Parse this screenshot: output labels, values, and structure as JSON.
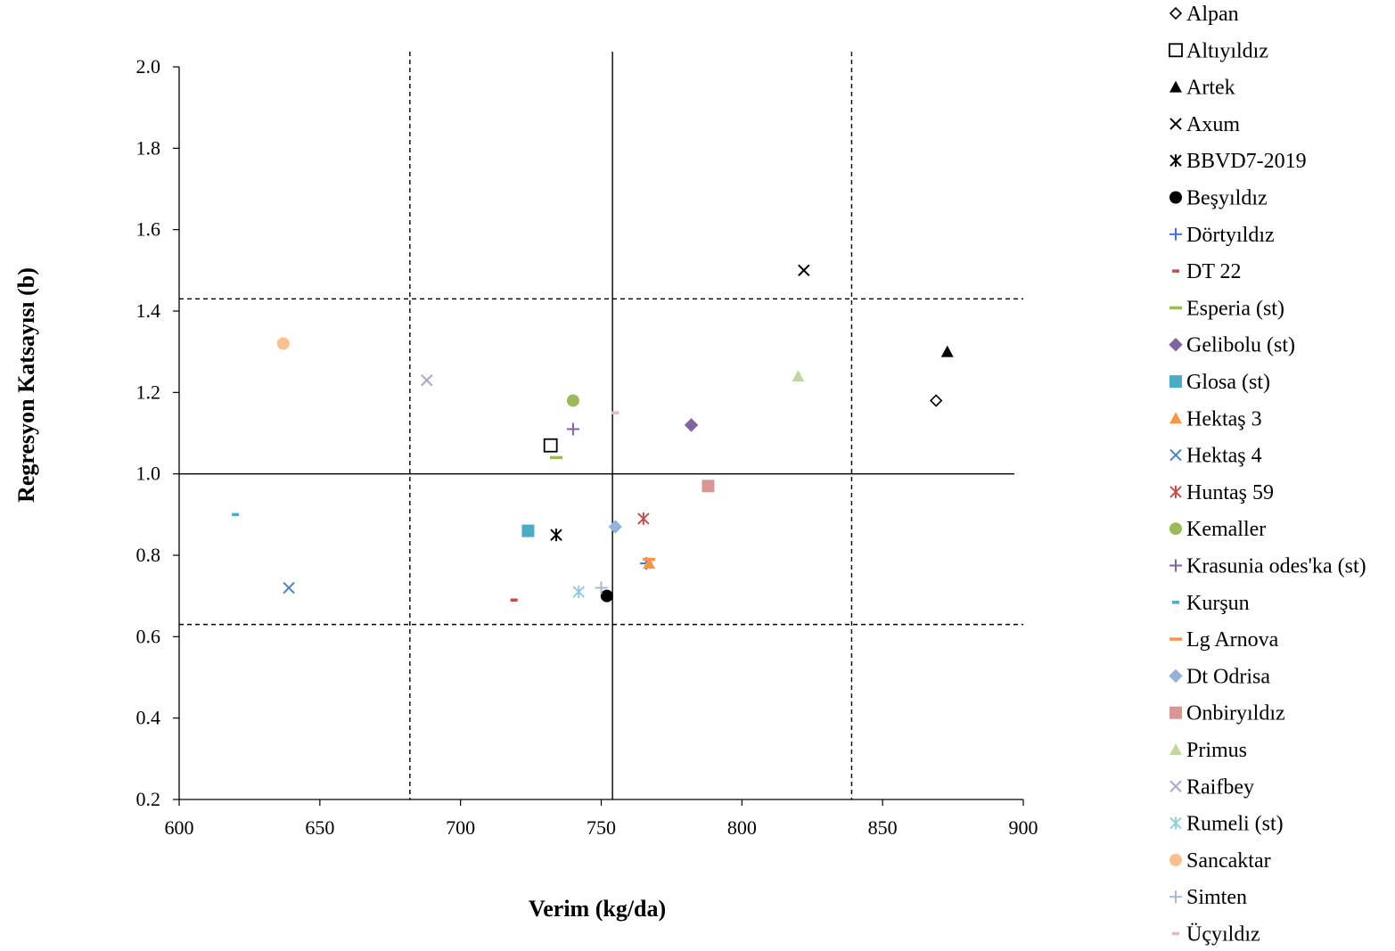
{
  "chart_data": {
    "type": "scatter",
    "title": "",
    "xlabel": "Verim (kg/da)",
    "ylabel": "Regresyon Katsayısı (b)",
    "xlim": [
      600,
      900
    ],
    "ylim": [
      0.2,
      2.0
    ],
    "xticks": [
      600,
      650,
      700,
      750,
      800,
      850,
      900
    ],
    "yticks": [
      0.2,
      0.4,
      0.6,
      0.8,
      1.0,
      1.2,
      1.4,
      1.6,
      1.8,
      2.0
    ],
    "xtick_labels": [
      "600",
      "650",
      "700",
      "750",
      "800",
      "850",
      "900"
    ],
    "ytick_labels": [
      "0.2",
      "0.4",
      "0.6",
      "0.8",
      "1.0",
      "1.2",
      "1.4",
      "1.6",
      "1.8",
      "2.0"
    ],
    "grid": false,
    "legend_position": "right",
    "reference_lines": [
      {
        "orientation": "vertical",
        "x": 754,
        "style": "solid"
      },
      {
        "orientation": "vertical",
        "x": 682,
        "style": "dashed"
      },
      {
        "orientation": "vertical",
        "x": 839,
        "style": "dashed"
      },
      {
        "orientation": "horizontal",
        "y": 1.0,
        "style": "solid"
      },
      {
        "orientation": "horizontal",
        "y": 1.43,
        "style": "dashed"
      },
      {
        "orientation": "horizontal",
        "y": 0.63,
        "style": "dashed"
      }
    ],
    "series": [
      {
        "name": "Alpan",
        "x": 869,
        "y": 1.18,
        "marker": "diamond-open",
        "color": "#000000"
      },
      {
        "name": "Altıyıldız",
        "x": 732,
        "y": 1.07,
        "marker": "square-open",
        "color": "#000000"
      },
      {
        "name": "Artek",
        "x": 873,
        "y": 1.3,
        "marker": "triangle",
        "color": "#000000"
      },
      {
        "name": "Axum",
        "x": 822,
        "y": 1.5,
        "marker": "x",
        "color": "#000000"
      },
      {
        "name": "BBVD7-2019",
        "x": 734,
        "y": 0.85,
        "marker": "star",
        "color": "#000000"
      },
      {
        "name": "Beşyıldız",
        "x": 752,
        "y": 0.7,
        "marker": "circle",
        "color": "#000000"
      },
      {
        "name": "Dörtyıldız",
        "x": 766,
        "y": 0.78,
        "marker": "plus",
        "color": "#4472C4"
      },
      {
        "name": "DT 22",
        "x": 719,
        "y": 0.69,
        "marker": "dash",
        "color": "#C0504D"
      },
      {
        "name": "Esperia (st)",
        "x": 734,
        "y": 1.04,
        "marker": "dash-long",
        "color": "#9BBB59"
      },
      {
        "name": "Gelibolu (st)",
        "x": 782,
        "y": 1.12,
        "marker": "diamond",
        "color": "#8064A2"
      },
      {
        "name": "Glosa (st)",
        "x": 724,
        "y": 0.86,
        "marker": "square",
        "color": "#4BACC6"
      },
      {
        "name": "Hektaş 3",
        "x": 767,
        "y": 0.78,
        "marker": "triangle",
        "color": "#F79646"
      },
      {
        "name": "Hektaş 4",
        "x": 639,
        "y": 0.72,
        "marker": "x",
        "color": "#4F81BD"
      },
      {
        "name": "Huntaş 59",
        "x": 765,
        "y": 0.89,
        "marker": "star",
        "color": "#C0504D"
      },
      {
        "name": "Kemaller",
        "x": 740,
        "y": 1.18,
        "marker": "circle",
        "color": "#9BBB59"
      },
      {
        "name": "Krasunia odes'ka (st)",
        "x": 740,
        "y": 1.11,
        "marker": "plus",
        "color": "#8064A2"
      },
      {
        "name": "Kurşun",
        "x": 620,
        "y": 0.9,
        "marker": "dash",
        "color": "#4BACC6"
      },
      {
        "name": "Lg Arnova",
        "x": 767,
        "y": 0.79,
        "marker": "dash-long",
        "color": "#F79646"
      },
      {
        "name": "Dt Odrisa",
        "x": 755,
        "y": 0.87,
        "marker": "diamond",
        "color": "#95B3D7"
      },
      {
        "name": "Onbiryıldız",
        "x": 788,
        "y": 0.97,
        "marker": "square",
        "color": "#D99694"
      },
      {
        "name": "Primus",
        "x": 820,
        "y": 1.24,
        "marker": "triangle",
        "color": "#C3D69B"
      },
      {
        "name": "Raifbey",
        "x": 688,
        "y": 1.23,
        "marker": "x",
        "color": "#B3A2C7"
      },
      {
        "name": "Rumeli (st)",
        "x": 742,
        "y": 0.71,
        "marker": "star",
        "color": "#93CDDD"
      },
      {
        "name": "Sancaktar",
        "x": 637,
        "y": 1.32,
        "marker": "circle",
        "color": "#FAC090"
      },
      {
        "name": "Simten",
        "x": 750,
        "y": 0.72,
        "marker": "plus",
        "color": "#A6B9D8"
      },
      {
        "name": "Üçyıldız",
        "x": 755,
        "y": 1.15,
        "marker": "dash",
        "color": "#E6B9B8"
      }
    ]
  }
}
